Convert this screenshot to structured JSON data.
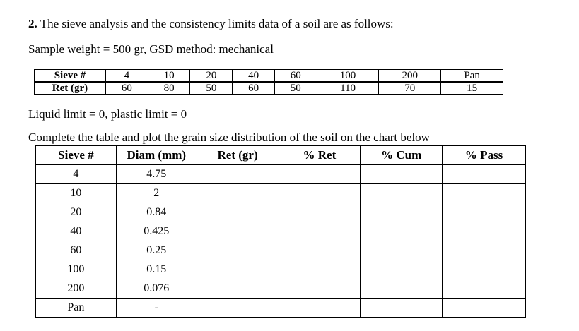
{
  "problem": {
    "number": "2.",
    "statement": " The sieve analysis and the consistency limits data of a soil are as follows:",
    "sample_line": "Sample weight = 500 gr, GSD method: mechanical",
    "limits_line": "Liquid limit = 0, plastic limit = 0",
    "instruction": "Complete the table and plot the grain size distribution of the soil on the chart below"
  },
  "sieve_data": {
    "row_labels": [
      "Sieve #",
      "Ret (gr)"
    ],
    "sieves": [
      "4",
      "10",
      "20",
      "40",
      "60",
      "100",
      "200",
      "Pan"
    ],
    "retained": [
      "60",
      "80",
      "50",
      "60",
      "50",
      "110",
      "70",
      "15"
    ]
  },
  "result_table": {
    "headers": [
      "Sieve #",
      "Diam (mm)",
      "Ret (gr)",
      "% Ret",
      "% Cum",
      "% Pass"
    ],
    "rows": [
      {
        "sieve": "4",
        "diam": "4.75"
      },
      {
        "sieve": "10",
        "diam": "2"
      },
      {
        "sieve": "20",
        "diam": "0.84"
      },
      {
        "sieve": "40",
        "diam": "0.425"
      },
      {
        "sieve": "60",
        "diam": "0.25"
      },
      {
        "sieve": "100",
        "diam": "0.15"
      },
      {
        "sieve": "200",
        "diam": "0.076"
      },
      {
        "sieve": "Pan",
        "diam": "-"
      }
    ]
  }
}
